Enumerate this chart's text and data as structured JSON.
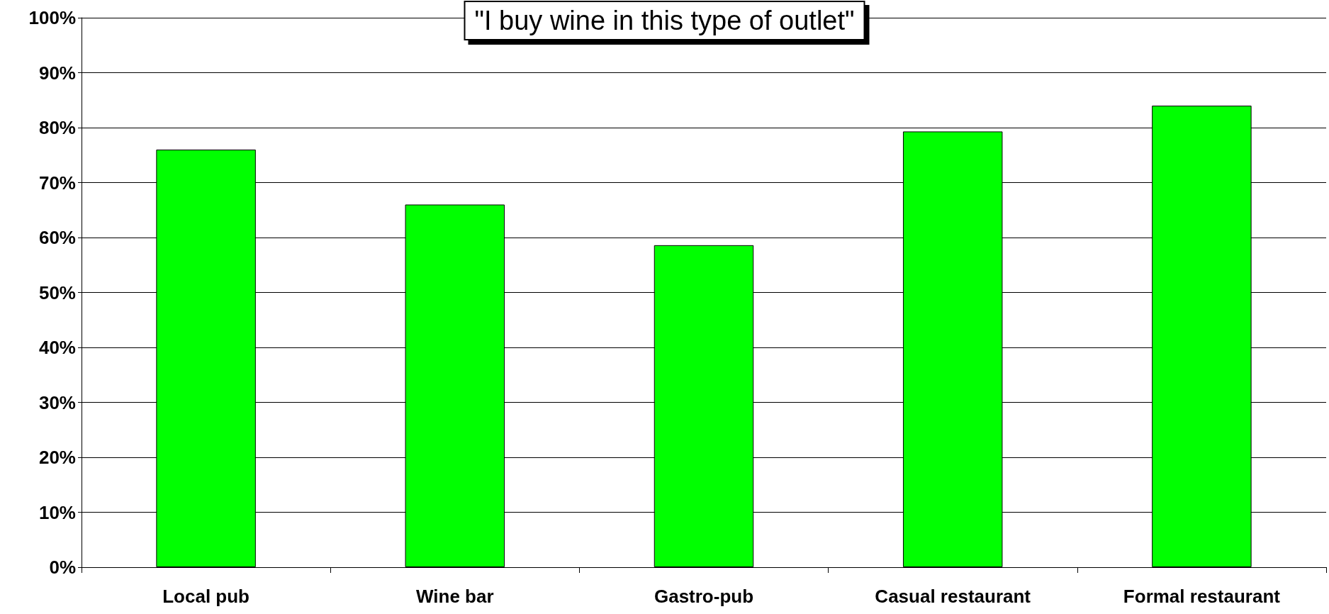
{
  "chart_data": {
    "type": "bar",
    "title": "\"I buy wine in this type of outlet\"",
    "categories": [
      "Local pub",
      "Wine bar",
      "Gastro-pub",
      "Casual restaurant",
      "Formal restaurant"
    ],
    "values": [
      76,
      66,
      58.6,
      79.3,
      84
    ],
    "color": "#00ff00",
    "ylim": [
      0,
      100
    ],
    "yticks": [
      {
        "value": 0,
        "label": "0%"
      },
      {
        "value": 10,
        "label": "10%"
      },
      {
        "value": 20,
        "label": "20%"
      },
      {
        "value": 30,
        "label": "30%"
      },
      {
        "value": 40,
        "label": "40%"
      },
      {
        "value": 50,
        "label": "50%"
      },
      {
        "value": 60,
        "label": "60%"
      },
      {
        "value": 70,
        "label": "70%"
      },
      {
        "value": 80,
        "label": "80%"
      },
      {
        "value": 90,
        "label": "90%"
      },
      {
        "value": 100,
        "label": "100%"
      }
    ],
    "grid": "y"
  }
}
